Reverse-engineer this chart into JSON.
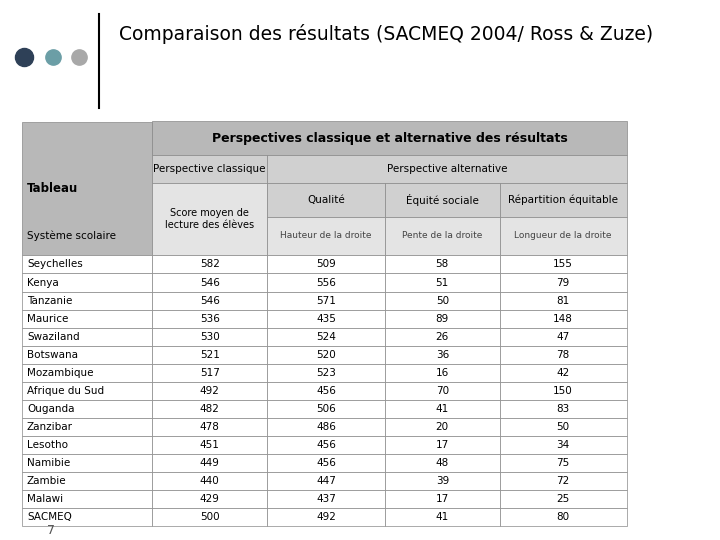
{
  "title": "Comparaison des résultats (SACMEQ 2004/ Ross & Zuze)",
  "rows": [
    [
      "Seychelles",
      "582",
      "509",
      "58",
      "155"
    ],
    [
      "Kenya",
      "546",
      "556",
      "51",
      "79"
    ],
    [
      "Tanzanie",
      "546",
      "571",
      "50",
      "81"
    ],
    [
      "Maurice",
      "536",
      "435",
      "89",
      "148"
    ],
    [
      "Swaziland",
      "530",
      "524",
      "26",
      "47"
    ],
    [
      "Botswana",
      "521",
      "520",
      "36",
      "78"
    ],
    [
      "Mozambique",
      "517",
      "523",
      "16",
      "42"
    ],
    [
      "Afrique du Sud",
      "492",
      "456",
      "70",
      "150"
    ],
    [
      "Ouganda",
      "482",
      "506",
      "41",
      "83"
    ],
    [
      "Zanzibar",
      "478",
      "486",
      "20",
      "50"
    ],
    [
      "Lesotho",
      "451",
      "456",
      "17",
      "34"
    ],
    [
      "Namibie",
      "449",
      "456",
      "48",
      "75"
    ],
    [
      "Zambie",
      "440",
      "447",
      "39",
      "72"
    ],
    [
      "Malawi",
      "429",
      "437",
      "17",
      "25"
    ],
    [
      "SACMEQ",
      "500",
      "492",
      "41",
      "80"
    ]
  ],
  "bg_color": "#ffffff",
  "title_color": "#000000",
  "header_bg": "#b8b8b8",
  "header2_bg": "#d0d0d0",
  "header3_bg": "#e4e4e4",
  "row_bg": "#ffffff",
  "border_color": "#888888",
  "dot_colors": [
    "#2e4057",
    "#6b9ea6",
    "#a8a8a8"
  ],
  "page_number": "7"
}
